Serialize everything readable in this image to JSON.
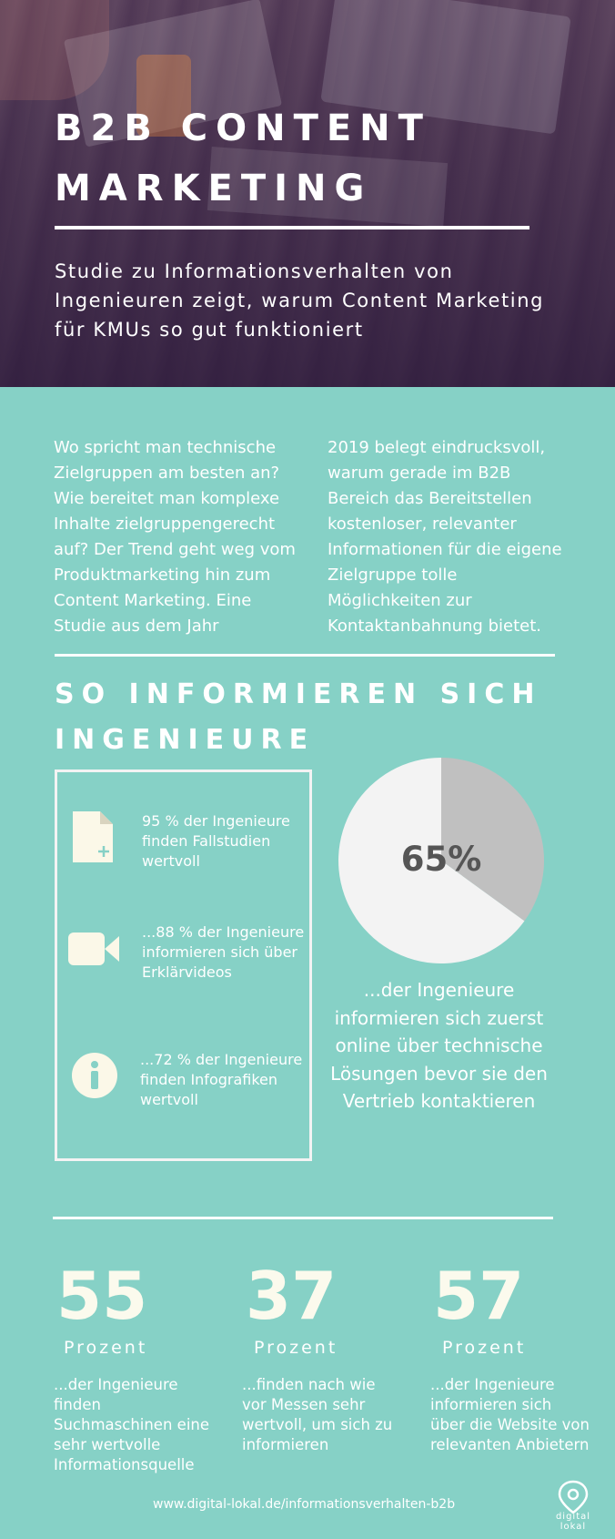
{
  "hero": {
    "title": "B2B CONTENT MARKETING",
    "subtitle": "Studie zu Informationsverhalten von Ingenieuren zeigt, warum Content Marketing für KMUs so gut funktioniert"
  },
  "intro": {
    "left": "Wo spricht man technische Zielgruppen am besten an? Wie bereitet man komplexe Inhalte zielgruppengerecht auf? Der Trend geht weg vom Produktmarketing hin zum Content Marketing. Eine Studie aus dem Jahr",
    "right": "2019 belegt eindrucksvoll, warum gerade im B2B Bereich das Bereitstellen kostenloser, relevanter Informationen für die eigene Zielgruppe tolle Möglichkeiten zur Kontaktanbahnung bietet."
  },
  "section": {
    "title": "SO INFORMIEREN SICH INGENIEURE"
  },
  "stats": [
    {
      "icon": "document-icon",
      "text": "95 % der Ingenieure finden Fallstudien wertvoll"
    },
    {
      "icon": "video-camera-icon",
      "text": "...88 % der Ingenieure informieren sich über Erklärvideos"
    },
    {
      "icon": "info-icon",
      "text": "...72 % der Ingenieure finden Infografiken wertvoll"
    }
  ],
  "chart_data": {
    "type": "pie",
    "values": [
      65,
      35
    ],
    "colors": [
      "#f3f3f3",
      "#c0c0c0"
    ],
    "label": "65%",
    "caption": "...der Ingenieure informieren sich zuerst online über technische Lösungen bevor sie den Vertrieb kontaktieren"
  },
  "big_stats": [
    {
      "number": "55",
      "unit": "Prozent",
      "text": "...der Ingenieure finden Suchmaschinen eine sehr wertvolle Informationsquelle"
    },
    {
      "number": "37",
      "unit": "Prozent",
      "text": "...finden nach wie vor Messen sehr wertvoll, um sich zu informieren"
    },
    {
      "number": "57",
      "unit": "Prozent",
      "text": "...der Ingenieure informieren sich über die Website von relevanten Anbietern"
    }
  ],
  "footer": {
    "url": "www.digital-lokal.de/informationsverhalten-b2b",
    "logo_text_1": "digital",
    "logo_text_2": "lokal"
  },
  "colors": {
    "background": "#86d1c6",
    "accent": "#fbfaed",
    "pie_light": "#f3f3f3",
    "pie_dark": "#c0c0c0"
  }
}
